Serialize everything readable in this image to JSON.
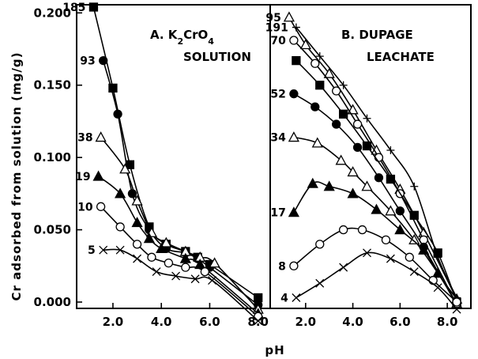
{
  "chart_data": {
    "type": "line",
    "ylabel": "Cr adsorbed from solution (mg/g)",
    "xlabel": "pH",
    "ylim": [
      0,
      0.21
    ],
    "yticks": [
      "0.000",
      "0.050",
      "0.100",
      "0.150",
      "0.200"
    ],
    "yticks_values": [
      0,
      0.05,
      0.1,
      0.15,
      0.2
    ],
    "grid": false,
    "panels": [
      {
        "title_line1": "A. K",
        "title_sub1": "2",
        "title_mid": "CrO",
        "title_sub2": "4",
        "title_line2": "SOLUTION",
        "xlim": [
          0.5,
          8.5
        ],
        "xticks": [
          "2.0",
          "4.0",
          "6.0",
          "8.0"
        ],
        "xticks_values": [
          2,
          4,
          6,
          8
        ],
        "series": [
          {
            "name": "185",
            "marker": "square-filled",
            "x": [
              1.2,
              2.0,
              2.7,
              3.5,
              4.2,
              5.0,
              5.5,
              6.0,
              8.0
            ],
            "y": [
              0.204,
              0.148,
              0.095,
              0.052,
              0.04,
              0.035,
              0.031,
              0.026,
              0.003
            ]
          },
          {
            "name": "93",
            "marker": "circle-filled",
            "x": [
              1.6,
              2.2,
              2.8,
              3.5,
              4.2,
              5.0,
              5.5,
              6.0,
              8.0
            ],
            "y": [
              0.167,
              0.13,
              0.075,
              0.05,
              0.037,
              0.034,
              0.03,
              0.024,
              -0.002
            ]
          },
          {
            "name": "38",
            "marker": "triangle-open",
            "x": [
              1.5,
              2.5,
              3.0,
              3.6,
              4.2,
              5.0,
              5.6,
              6.2,
              8.0
            ],
            "y": [
              0.114,
              0.092,
              0.07,
              0.048,
              0.041,
              0.035,
              0.031,
              0.027,
              -0.005
            ]
          },
          {
            "name": "19",
            "marker": "triangle-filled",
            "x": [
              1.4,
              2.3,
              3.0,
              3.5,
              4.0,
              5.0,
              5.6,
              8.0
            ],
            "y": [
              0.087,
              0.075,
              0.055,
              0.044,
              0.037,
              0.03,
              0.026,
              -0.008
            ]
          },
          {
            "name": "10",
            "marker": "circle-open",
            "x": [
              1.5,
              2.3,
              3.0,
              3.6,
              4.3,
              5.0,
              5.8,
              8.0
            ],
            "y": [
              0.066,
              0.052,
              0.04,
              0.031,
              0.027,
              0.024,
              0.021,
              -0.01
            ]
          },
          {
            "name": "5",
            "marker": "x",
            "x": [
              1.6,
              2.3,
              3.0,
              3.8,
              4.6,
              5.4,
              6.1,
              8.0
            ],
            "y": [
              0.036,
              0.036,
              0.03,
              0.021,
              0.018,
              0.016,
              0.015,
              -0.013
            ]
          }
        ]
      },
      {
        "title_line1": "B. DUPAGE",
        "title_line2": "LEACHATE",
        "xlim": [
          0.5,
          9.0
        ],
        "xticks": [
          "2.0",
          "4.0",
          "6.0",
          "8.0"
        ],
        "xticks_values": [
          2,
          4,
          6,
          8
        ],
        "series": [
          {
            "name": "191",
            "marker": "plus-filled",
            "x": [
              1.6,
              2.6,
              3.6,
              4.6,
              5.6,
              6.6,
              7.6,
              8.4
            ],
            "y": [
              0.19,
              0.17,
              0.15,
              0.127,
              0.105,
              0.08,
              0.031,
              0.003
            ]
          },
          {
            "name": "95",
            "marker": "triangle-open",
            "x": [
              1.3,
              2.0,
              3.0,
              4.0,
              5.0,
              6.0,
              7.0,
              8.4
            ],
            "y": [
              0.197,
              0.178,
              0.158,
              0.133,
              0.105,
              0.078,
              0.048,
              0.002
            ]
          },
          {
            "name": "70",
            "marker": "circle-open",
            "x": [
              1.5,
              2.4,
              3.3,
              4.2,
              5.1,
              6.0,
              7.0,
              8.4
            ],
            "y": [
              0.181,
              0.165,
              0.146,
              0.123,
              0.1,
              0.075,
              0.043,
              -0.002
            ]
          },
          {
            "name": "",
            "marker": "square-filled",
            "x": [
              1.6,
              2.6,
              3.6,
              4.6,
              5.6,
              6.6,
              7.6,
              8.4
            ],
            "y": [
              0.167,
              0.15,
              0.13,
              0.108,
              0.085,
              0.06,
              0.034,
              0.0
            ]
          },
          {
            "name": "52",
            "marker": "circle-filled",
            "x": [
              1.5,
              2.4,
              3.3,
              4.2,
              5.1,
              6.0,
              7.0,
              8.4
            ],
            "y": [
              0.144,
              0.135,
              0.123,
              0.107,
              0.086,
              0.063,
              0.038,
              -0.002
            ]
          },
          {
            "name": "34",
            "marker": "triangle-open",
            "x": [
              1.5,
              2.5,
              3.5,
              4.0,
              4.6,
              5.6,
              6.6,
              7.6,
              8.4
            ],
            "y": [
              0.114,
              0.11,
              0.098,
              0.09,
              0.08,
              0.063,
              0.043,
              0.02,
              -0.001
            ]
          },
          {
            "name": "17",
            "marker": "triangle-filled",
            "x": [
              1.5,
              2.3,
              3.0,
              4.0,
              5.0,
              6.0,
              7.0,
              7.6,
              8.4
            ],
            "y": [
              0.062,
              0.082,
              0.08,
              0.075,
              0.064,
              0.05,
              0.036,
              0.02,
              0.002
            ]
          },
          {
            "name": "8",
            "marker": "circle-open",
            "x": [
              1.5,
              2.6,
              3.6,
              4.4,
              5.4,
              6.4,
              7.4,
              8.4
            ],
            "y": [
              0.025,
              0.04,
              0.05,
              0.05,
              0.043,
              0.031,
              0.015,
              0.0
            ]
          },
          {
            "name": "4",
            "marker": "x",
            "x": [
              1.6,
              2.6,
              3.6,
              4.6,
              5.6,
              6.6,
              7.6,
              8.4
            ],
            "y": [
              0.003,
              0.013,
              0.024,
              0.034,
              0.03,
              0.021,
              0.01,
              -0.005
            ]
          }
        ]
      }
    ]
  }
}
